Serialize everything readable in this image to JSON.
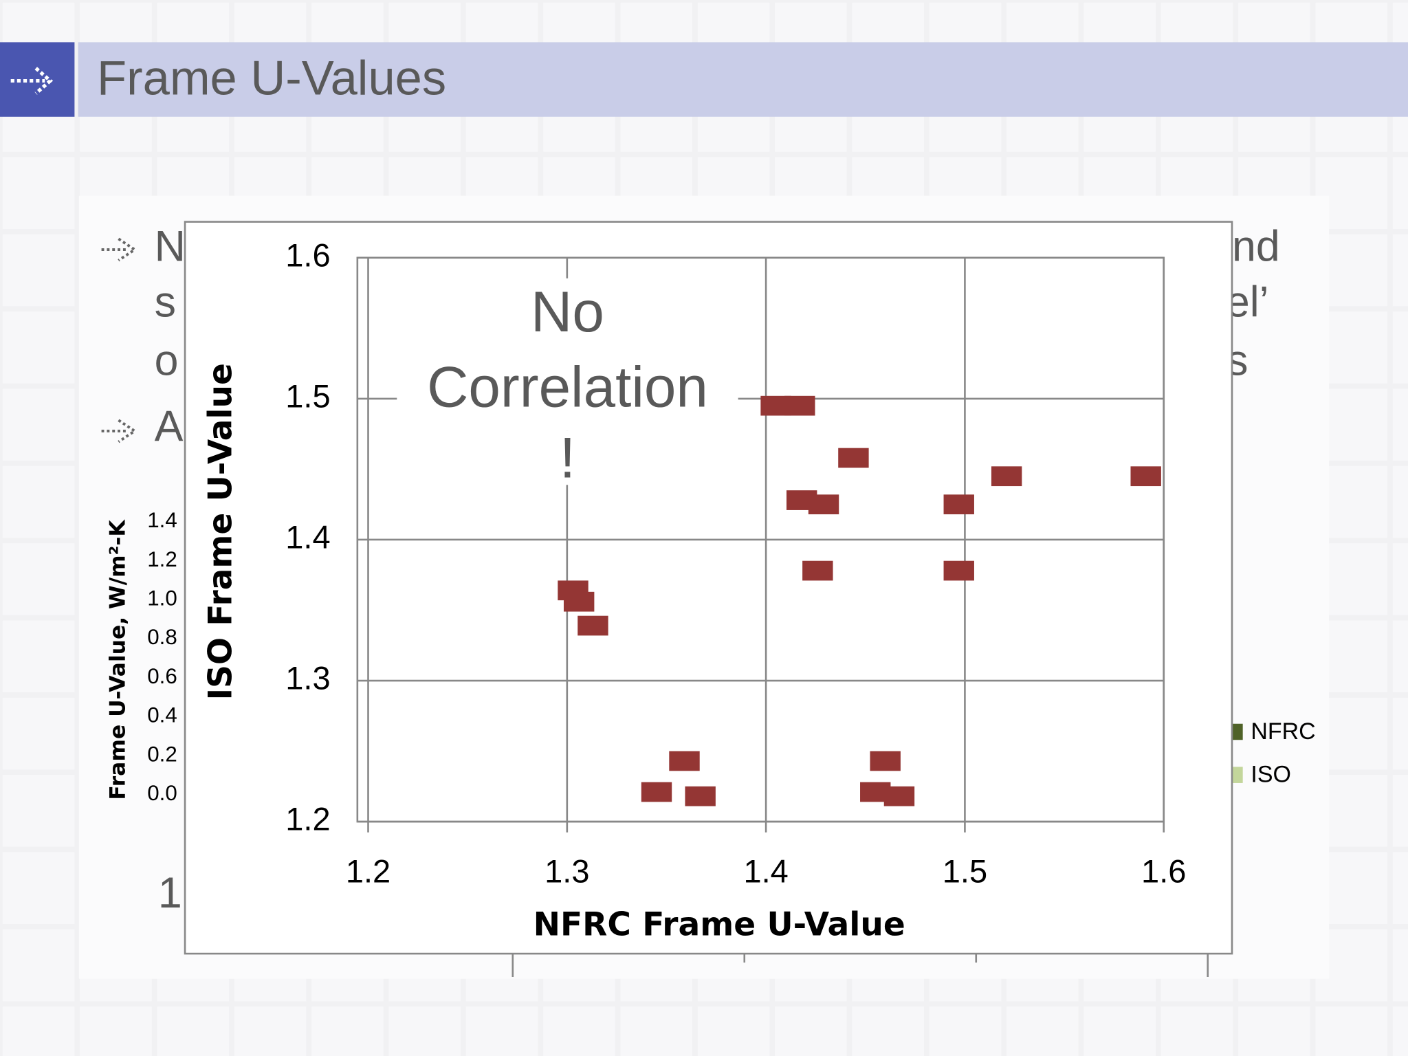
{
  "slide": {
    "title": "Frame U-Values",
    "fragments": [
      "N",
      "nd",
      "s",
      "el’",
      "o",
      "s",
      "A",
      "1"
    ],
    "background_chart": {
      "y_label": "Frame U-Value, W/m²-K",
      "ytick_labels": [
        "1.4",
        "1.2",
        "1.0",
        "0.8",
        "0.6",
        "0.4",
        "0.2",
        "0.0"
      ],
      "legend": [
        {
          "name": "NFRC",
          "color": "#4f6228"
        },
        {
          "name": "ISO",
          "color": "#c3d69b"
        }
      ]
    }
  },
  "chart_data": {
    "type": "scatter",
    "x_label": "NFRC Frame U-Value",
    "y_label": "ISO Frame U-Value",
    "annotation": [
      "No",
      "Correlation",
      "!"
    ],
    "color": "#943634",
    "grid": true,
    "xlim": [
      1.2,
      1.6
    ],
    "ylim": [
      1.2,
      1.6
    ],
    "xticks": [
      1.2,
      1.3,
      1.4,
      1.5,
      1.6
    ],
    "yticks": [
      1.2,
      1.3,
      1.4,
      1.5,
      1.6
    ],
    "x": [
      1.405,
      1.417,
      1.444,
      1.418,
      1.429,
      1.426,
      1.497,
      1.521,
      1.591,
      1.497,
      1.303,
      1.306,
      1.313,
      1.359,
      1.345,
      1.367,
      1.46,
      1.455,
      1.467
    ],
    "y": [
      1.495,
      1.495,
      1.458,
      1.428,
      1.425,
      1.378,
      1.425,
      1.445,
      1.445,
      1.378,
      1.364,
      1.356,
      1.339,
      1.243,
      1.221,
      1.218,
      1.243,
      1.221,
      1.218
    ]
  }
}
